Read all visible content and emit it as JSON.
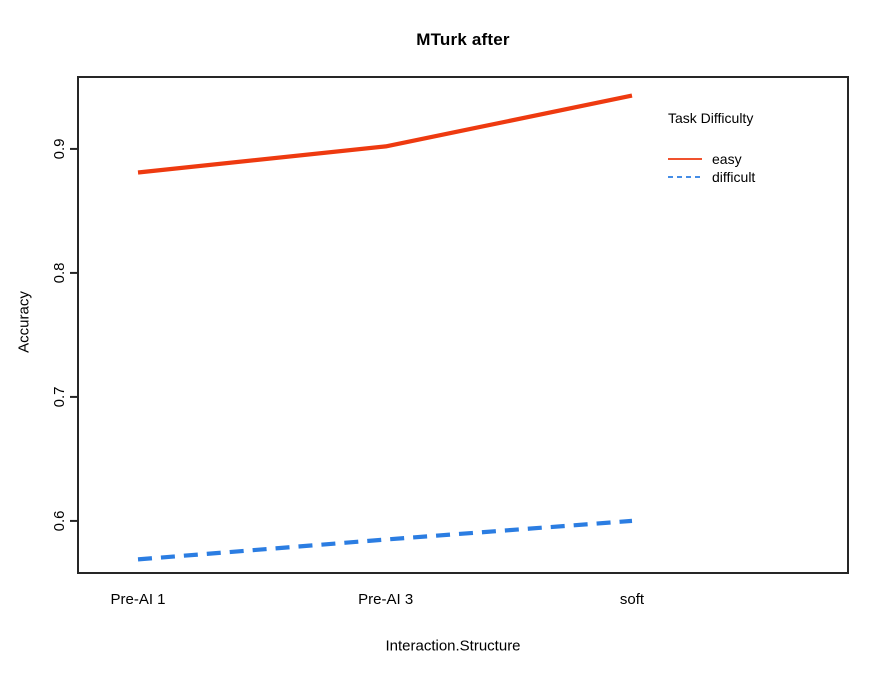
{
  "chart_data": {
    "type": "line",
    "title": "MTurk after",
    "xlabel": "Interaction.Structure",
    "ylabel": "Accuracy",
    "categories": [
      "Pre-AI 1",
      "Pre-AI 3",
      "soft"
    ],
    "series": [
      {
        "name": "easy",
        "values": [
          0.881,
          0.902,
          0.943
        ],
        "color": "#EE3A10",
        "dash": "solid"
      },
      {
        "name": "difficult",
        "values": [
          0.569,
          0.585,
          0.6
        ],
        "color": "#2B7DE2",
        "dash": "dashed"
      }
    ],
    "yticks": [
      "0.6",
      "0.7",
      "0.8",
      "0.9"
    ],
    "ylim": [
      0.558,
      0.958
    ],
    "grid": false,
    "axis_color": "#262626",
    "legend": {
      "title": "Task Difficulty",
      "position": "top-right"
    }
  }
}
